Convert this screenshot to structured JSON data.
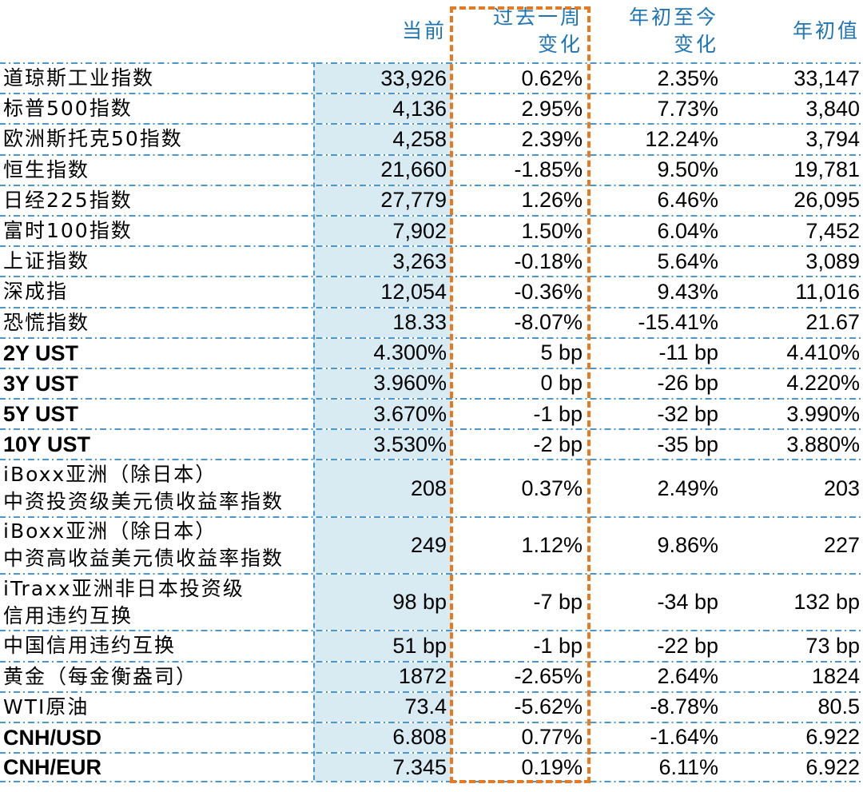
{
  "headers": [
    {
      "lines": [
        "当前"
      ]
    },
    {
      "lines": [
        "过去一周",
        "变化"
      ]
    },
    {
      "lines": [
        "年初至今",
        "变化"
      ]
    },
    {
      "lines": [
        "年初值"
      ]
    }
  ],
  "rows": [
    {
      "label": [
        "道琼斯工业指数"
      ],
      "current": "33,926",
      "week": "0.62%",
      "ytd": "2.35%",
      "start": "33,147"
    },
    {
      "label": [
        "标普500指数"
      ],
      "current": "4,136",
      "week": "2.95%",
      "ytd": "7.73%",
      "start": "3,840"
    },
    {
      "label": [
        "欧洲斯托克50指数"
      ],
      "current": "4,258",
      "week": "2.39%",
      "ytd": "12.24%",
      "start": "3,794"
    },
    {
      "label": [
        "恒生指数"
      ],
      "current": "21,660",
      "week": "-1.85%",
      "ytd": "9.50%",
      "start": "19,781"
    },
    {
      "label": [
        "日经225指数"
      ],
      "current": "27,779",
      "week": "1.26%",
      "ytd": "6.46%",
      "start": "26,095"
    },
    {
      "label": [
        "富时100指数"
      ],
      "current": "7,902",
      "week": "1.50%",
      "ytd": "6.04%",
      "start": "7,452"
    },
    {
      "label": [
        "上证指数"
      ],
      "current": "3,263",
      "week": "-0.18%",
      "ytd": "5.64%",
      "start": "3,089"
    },
    {
      "label": [
        "深成指"
      ],
      "current": "12,054",
      "week": "-0.36%",
      "ytd": "9.43%",
      "start": "11,016"
    },
    {
      "label": [
        "恐慌指数"
      ],
      "current": "18.33",
      "week": "-8.07%",
      "ytd": "-15.41%",
      "start": "21.67"
    },
    {
      "label": [
        "2Y UST"
      ],
      "current": "4.300%",
      "week": "5 bp",
      "ytd": "-11 bp",
      "start": "4.410%"
    },
    {
      "label": [
        "3Y UST"
      ],
      "current": "3.960%",
      "week": "0 bp",
      "ytd": "-26 bp",
      "start": "4.220%"
    },
    {
      "label": [
        "5Y UST"
      ],
      "current": "3.670%",
      "week": "-1 bp",
      "ytd": "-32 bp",
      "start": "3.990%"
    },
    {
      "label": [
        "10Y UST"
      ],
      "current": "3.530%",
      "week": "-2 bp",
      "ytd": "-35 bp",
      "start": "3.880%"
    },
    {
      "label": [
        "iBoxx亚洲（除日本）",
        "中资投资级美元债收益率指数"
      ],
      "current": "208",
      "week": "0.37%",
      "ytd": "2.49%",
      "start": "203"
    },
    {
      "label": [
        "iBoxx亚洲（除日本）",
        "中资高收益美元债收益率指数"
      ],
      "current": "249",
      "week": "1.12%",
      "ytd": "9.86%",
      "start": "227"
    },
    {
      "label": [
        "iTraxx亚洲非日本投资级",
        "信用违约互换"
      ],
      "current": "98 bp",
      "week": "-7 bp",
      "ytd": "-34 bp",
      "start": "132 bp"
    },
    {
      "label": [
        "中国信用违约互换"
      ],
      "current": "51 bp",
      "week": "-1 bp",
      "ytd": "-22 bp",
      "start": "73 bp"
    },
    {
      "label": [
        "黄金（每金衡盎司）"
      ],
      "current": "1872",
      "week": "-2.65%",
      "ytd": "2.64%",
      "start": "1824"
    },
    {
      "label": [
        "WTI原油"
      ],
      "current": "73.4",
      "week": "-5.62%",
      "ytd": "-8.78%",
      "start": "80.5"
    },
    {
      "label": [
        "CNH/USD"
      ],
      "current": "6.808",
      "week": "0.77%",
      "ytd": "-1.64%",
      "start": "6.922"
    },
    {
      "label": [
        "CNH/EUR"
      ],
      "current": "7.345",
      "week": "0.19%",
      "ytd": "6.11%",
      "start": "6.922"
    }
  ],
  "colors": {
    "header": "#1f74b4",
    "highlight": "#d8ebf2",
    "grid": "#4a97cf",
    "week_border": "#e8791f"
  }
}
